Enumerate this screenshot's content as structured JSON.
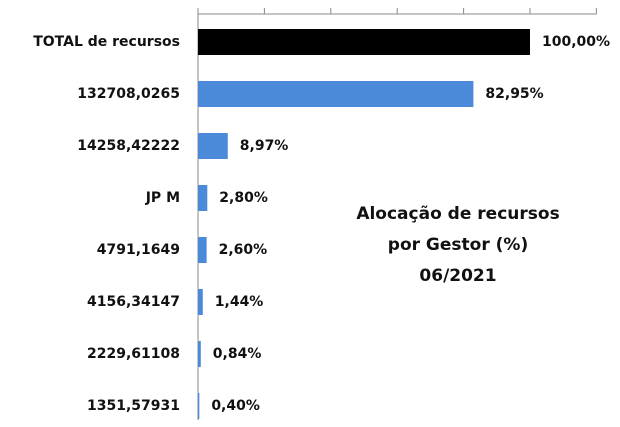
{
  "chart_data": {
    "type": "barh",
    "title": [
      "Alocação de recursos",
      "por Gestor (%)",
      "06/2021"
    ],
    "categories": [
      "TOTAL de recursos",
      "132708,0265",
      "14258,42222",
      "JP M",
      "4791,1649",
      "4156,34147",
      "2229,61108",
      "1351,57931"
    ],
    "values": [
      100,
      82.95,
      8.97,
      2.8,
      2.6,
      1.44,
      0.84,
      0.4
    ],
    "value_labels": [
      "100,00%",
      "82,95%",
      "8,97%",
      "2,80%",
      "2,60%",
      "1,44%",
      "0,84%",
      "0,40%"
    ],
    "colors": [
      "#000000",
      "#4a8ad8",
      "#4a8ad8",
      "#4a8ad8",
      "#4a8ad8",
      "#4a8ad8",
      "#4a8ad8",
      "#4a8ad8"
    ],
    "xlim": [
      0,
      120
    ],
    "xticks": [
      0,
      20,
      40,
      60,
      80,
      100,
      120
    ]
  }
}
